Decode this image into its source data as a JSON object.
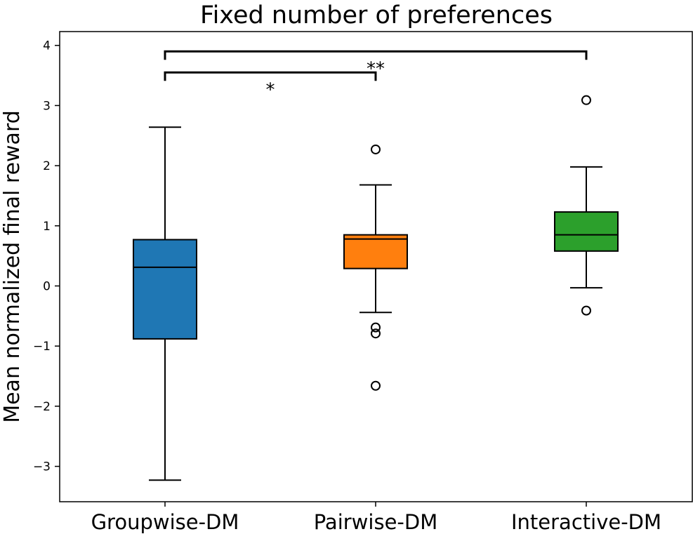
{
  "chart_data": {
    "type": "box",
    "title": "Fixed number of preferences",
    "xlabel": "",
    "ylabel": "Mean normalized final reward",
    "ylim": [
      -3.6,
      4.25
    ],
    "yticks": [
      -3,
      -2,
      -1,
      0,
      1,
      2,
      3,
      4
    ],
    "ytick_labels": [
      "−3",
      "−2",
      "−1",
      "0",
      "1",
      "2",
      "3",
      "4"
    ],
    "categories": [
      "Groupwise-DM",
      "Pairwise-DM",
      "Interactive-DM"
    ],
    "boxes": [
      {
        "name": "Groupwise-DM",
        "color": "#1f77b4",
        "whisker_low": -3.23,
        "q1": -0.88,
        "median": 0.31,
        "q3": 0.77,
        "whisker_high": 2.64,
        "outliers": []
      },
      {
        "name": "Pairwise-DM",
        "color": "#ff7f0e",
        "whisker_low": -0.44,
        "q1": 0.29,
        "median": 0.78,
        "q3": 0.85,
        "whisker_high": 1.68,
        "outliers": [
          2.27,
          -0.69,
          -0.79,
          -1.66
        ]
      },
      {
        "name": "Interactive-DM",
        "color": "#2ca02c",
        "whisker_low": -0.03,
        "q1": 0.58,
        "median": 0.85,
        "q3": 1.23,
        "whisker_high": 1.98,
        "outliers": [
          3.09,
          -0.41
        ]
      }
    ],
    "significance": [
      {
        "from": 0,
        "to": 1,
        "y": 3.55,
        "label": "*"
      },
      {
        "from": 0,
        "to": 2,
        "y": 3.9,
        "label": "**"
      }
    ]
  }
}
